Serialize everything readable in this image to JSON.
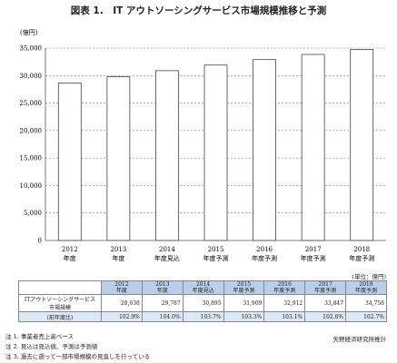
{
  "title": "図表 1.　IT アウトソーシングサービス市場規模推移と予測",
  "unit_top": "(億円)",
  "unit_table": "(単位：億円)",
  "chart_data": {
    "type": "bar",
    "categories": [
      "2012\n年度",
      "2013\n年度",
      "2014\n年度見込",
      "2015\n年度予測",
      "2016\n年度予測",
      "2017\n年度予測",
      "2018\n年度予測"
    ],
    "values": [
      28638,
      29787,
      30895,
      31909,
      32912,
      33847,
      34758
    ],
    "ylim": [
      0,
      35000
    ],
    "yticks": [
      "0",
      "5,000",
      "10,000",
      "15,000",
      "20,000",
      "25,000",
      "30,000",
      "35,000"
    ],
    "ylabel": "(億円)",
    "bar_color": "#ffffff",
    "grid": true
  },
  "table": {
    "headers": [
      [
        "2012",
        "年度"
      ],
      [
        "2013",
        "年度"
      ],
      [
        "2014",
        "年度見込"
      ],
      [
        "2015",
        "年度予測"
      ],
      [
        "2016",
        "年度予測"
      ],
      [
        "2017",
        "年度予測"
      ],
      [
        "2018",
        "年度予測"
      ]
    ],
    "row_label_lines": [
      "ITアウトソーシングサービス",
      "市場規模"
    ],
    "row_values": [
      "28,638",
      "29,787",
      "30,895",
      "31,909",
      "32,912",
      "33,847",
      "34,758"
    ],
    "growth_label": "(前年度比)",
    "growth_values": [
      "102.9%",
      "104.0%",
      "103.7%",
      "103.3%",
      "103.1%",
      "102.8%",
      "102.7%"
    ]
  },
  "notes": [
    "注 1. 事業者売上高ベース",
    "注 2. 見込は見込値、予測は予測値",
    "注 3. 過去に遡って一部市場規模の見直しを行っている"
  ],
  "source": "矢野経済研究所推計"
}
